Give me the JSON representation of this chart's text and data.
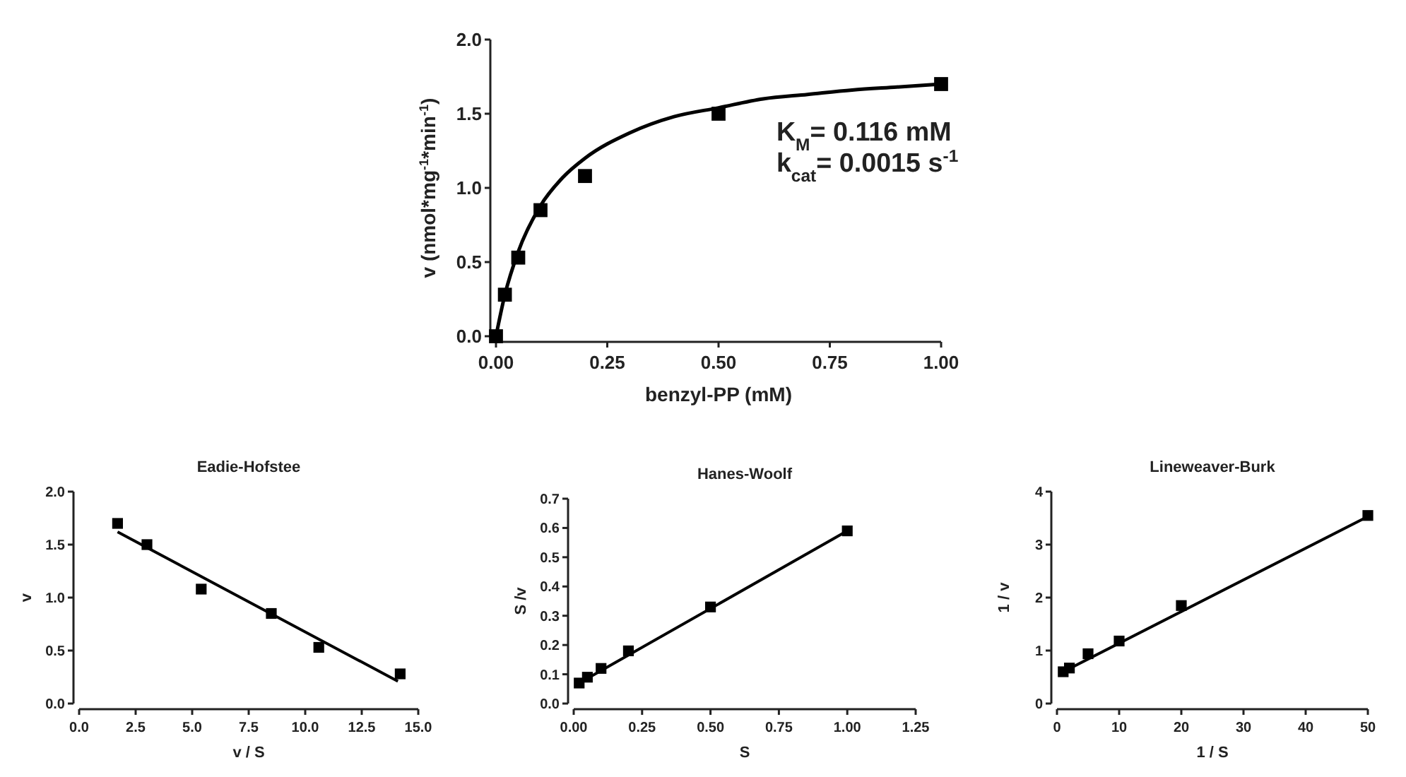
{
  "chart_data": [
    {
      "type": "scatter",
      "xlabel": "benzyl-PP (mM)",
      "ylabel": "v (nmol*mg$^{-1}$*min$^{-1}$)",
      "xlim": [
        0,
        1.0
      ],
      "ylim": [
        0,
        2.0
      ],
      "xticks": [
        {
          "value": 0,
          "label": "0.00"
        },
        0.25,
        {
          "value": 0.5,
          "label": "0.50"
        },
        0.75,
        {
          "value": 1,
          "label": "1.00"
        }
      ],
      "yticks": [
        {
          "value": 0,
          "label": "0.0"
        },
        0.5,
        {
          "value": 1,
          "label": "1.0"
        },
        1.5,
        {
          "value": 2,
          "label": "2.0"
        }
      ],
      "annotations": [
        "K$_{M}$= 0.116 mM",
        "k$_{cat}$= 0.0015 s$^{-1}$"
      ],
      "series": [
        {
          "marker": "square",
          "color": "#000000",
          "x": [
            0,
            0.02,
            0.05,
            0.1,
            0.2,
            0.5,
            1.0
          ],
          "values": [
            0,
            0.28,
            0.53,
            0.85,
            1.08,
            1.5,
            1.7
          ]
        },
        {
          "type": "line",
          "marker": "none",
          "color": "#000000",
          "x": [
            0,
            0.02,
            0.05,
            0.1,
            0.15,
            0.2,
            0.3,
            0.4,
            0.5,
            0.6,
            0.7,
            0.8,
            0.9,
            1.0
          ],
          "values": [
            0,
            0.28,
            0.57,
            0.88,
            1.07,
            1.2,
            1.37,
            1.48,
            1.54,
            1.6,
            1.63,
            1.66,
            1.68,
            1.7
          ]
        }
      ]
    },
    {
      "type": "scatter",
      "title": "Eadie-Hofstee",
      "xlabel": "v / S",
      "ylabel": "v",
      "xlim": [
        0,
        15
      ],
      "ylim": [
        0,
        2.0
      ],
      "xticks": [
        {
          "value": 0,
          "label": "0.0"
        },
        2.5,
        {
          "value": 5,
          "label": "5.0"
        },
        7.5,
        {
          "value": 10,
          "label": "10.0"
        },
        12.5,
        {
          "value": 15,
          "label": "15.0"
        }
      ],
      "yticks": [
        {
          "value": 0,
          "label": "0.0"
        },
        0.5,
        {
          "value": 1,
          "label": "1.0"
        },
        1.5,
        {
          "value": 2,
          "label": "2.0"
        }
      ],
      "series": [
        {
          "marker": "square",
          "color": "#000000",
          "x": [
            14.2,
            10.6,
            8.5,
            5.4,
            3.0,
            1.7
          ],
          "values": [
            0.28,
            0.53,
            0.85,
            1.08,
            1.5,
            1.7
          ]
        },
        {
          "type": "line",
          "marker": "none",
          "color": "#000000",
          "x": [
            1.7,
            14.1
          ],
          "values": [
            1.62,
            0.21
          ]
        }
      ]
    },
    {
      "type": "scatter",
      "title": "Hanes-Woolf",
      "xlabel": "S",
      "ylabel": "S /v",
      "xlim": [
        0,
        1.25
      ],
      "ylim": [
        0,
        0.7
      ],
      "xticks": [
        {
          "value": 0,
          "label": "0.00"
        },
        0.25,
        {
          "value": 0.5,
          "label": "0.50"
        },
        0.75,
        {
          "value": 1,
          "label": "1.00"
        },
        1.25
      ],
      "yticks": [
        {
          "value": 0,
          "label": "0.0"
        },
        0.1,
        0.2,
        0.3,
        0.4,
        0.5,
        0.6,
        0.7
      ],
      "series": [
        {
          "marker": "square",
          "color": "#000000",
          "x": [
            0.02,
            0.05,
            0.1,
            0.2,
            0.5,
            1.0
          ],
          "values": [
            0.07,
            0.09,
            0.12,
            0.18,
            0.33,
            0.59
          ]
        },
        {
          "type": "line",
          "marker": "none",
          "color": "#000000",
          "x": [
            0.02,
            1.0
          ],
          "values": [
            0.07,
            0.59
          ]
        }
      ]
    },
    {
      "type": "scatter",
      "title": "Lineweaver-Burk",
      "xlabel": "1 / S",
      "ylabel": "1 / v",
      "xlim": [
        0,
        50
      ],
      "ylim": [
        0,
        4
      ],
      "xticks": [
        0,
        10,
        20,
        30,
        40,
        50
      ],
      "yticks": [
        0,
        1,
        2,
        3,
        4
      ],
      "series": [
        {
          "marker": "square",
          "color": "#000000",
          "x": [
            1,
            2,
            5,
            10,
            20,
            50
          ],
          "values": [
            0.6,
            0.67,
            0.94,
            1.18,
            1.85,
            3.55
          ]
        },
        {
          "type": "line",
          "marker": "none",
          "color": "#000000",
          "x": [
            1,
            50
          ],
          "values": [
            0.6,
            3.53
          ]
        }
      ]
    }
  ]
}
